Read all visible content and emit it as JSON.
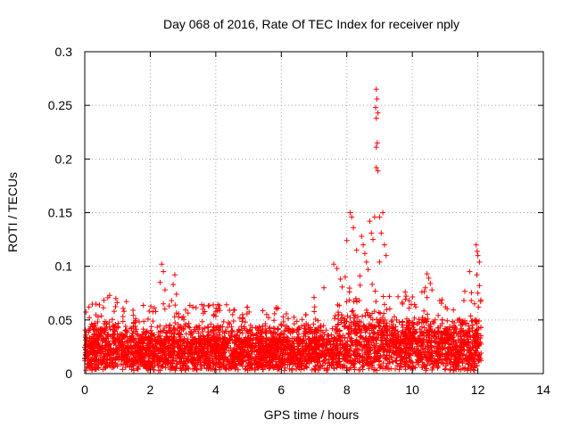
{
  "chart_data": {
    "type": "scatter",
    "title": "Day 068 of 2016, Rate Of TEC Index for receiver nply",
    "xlabel": "GPS time / hours",
    "ylabel": "ROTI / TECUs",
    "xlim": [
      0,
      14
    ],
    "ylim": [
      0,
      0.3
    ],
    "x_ticks": [
      0,
      2,
      4,
      6,
      8,
      10,
      12,
      14
    ],
    "y_ticks": [
      0,
      0.05,
      0.1,
      0.15,
      0.2,
      0.25,
      0.3
    ],
    "x_tick_labels": [
      "0",
      "2",
      "4",
      "6",
      "8",
      "10",
      "12",
      "14"
    ],
    "y_tick_labels": [
      "0",
      "0.05",
      "0.1",
      "0.15",
      "0.2",
      "0.25",
      "0.3"
    ],
    "grid": true,
    "marker": "+",
    "series": [
      {
        "name": "ROTI",
        "color": "#ff0000",
        "bulk_band": {
          "x_range": [
            0,
            12.1
          ],
          "y_min": 0.003,
          "base_level": 0.025,
          "envelope": "0.01-0.06"
        },
        "points": [
          [
            0.45,
            0.064
          ],
          [
            0.95,
            0.07
          ],
          [
            1.2,
            0.058
          ],
          [
            2.35,
            0.102
          ],
          [
            2.4,
            0.095
          ],
          [
            2.3,
            0.085
          ],
          [
            2.45,
            0.078
          ],
          [
            2.4,
            0.065
          ],
          [
            2.75,
            0.092
          ],
          [
            2.7,
            0.083
          ],
          [
            2.8,
            0.074
          ],
          [
            2.65,
            0.068
          ],
          [
            3.3,
            0.062
          ],
          [
            4.0,
            0.058
          ],
          [
            5.9,
            0.061
          ],
          [
            7.0,
            0.071
          ],
          [
            7.3,
            0.08
          ],
          [
            7.6,
            0.102
          ],
          [
            7.7,
            0.098
          ],
          [
            7.95,
            0.09
          ],
          [
            8.1,
            0.15
          ],
          [
            8.15,
            0.146
          ],
          [
            8.2,
            0.136
          ],
          [
            8.0,
            0.124
          ],
          [
            8.3,
            0.115
          ],
          [
            8.45,
            0.128
          ],
          [
            8.5,
            0.12
          ],
          [
            8.55,
            0.112
          ],
          [
            8.6,
            0.104
          ],
          [
            8.65,
            0.097
          ],
          [
            8.4,
            0.091
          ],
          [
            8.7,
            0.142
          ],
          [
            8.75,
            0.131
          ],
          [
            8.8,
            0.125
          ],
          [
            8.85,
            0.146
          ],
          [
            8.9,
            0.265
          ],
          [
            8.92,
            0.256
          ],
          [
            8.88,
            0.248
          ],
          [
            8.95,
            0.243
          ],
          [
            8.9,
            0.238
          ],
          [
            8.93,
            0.215
          ],
          [
            8.9,
            0.211
          ],
          [
            8.9,
            0.192
          ],
          [
            8.95,
            0.189
          ],
          [
            9.0,
            0.146
          ],
          [
            9.1,
            0.15
          ],
          [
            9.05,
            0.131
          ],
          [
            9.15,
            0.12
          ],
          [
            9.2,
            0.11
          ],
          [
            9.0,
            0.104
          ],
          [
            9.3,
            0.072
          ],
          [
            9.9,
            0.068
          ],
          [
            10.45,
            0.093
          ],
          [
            10.5,
            0.089
          ],
          [
            10.55,
            0.084
          ],
          [
            10.4,
            0.08
          ],
          [
            10.6,
            0.078
          ],
          [
            11.75,
            0.095
          ],
          [
            11.8,
            0.068
          ],
          [
            11.9,
            0.065
          ],
          [
            11.95,
            0.12
          ],
          [
            11.98,
            0.114
          ],
          [
            12.0,
            0.11
          ],
          [
            12.05,
            0.104
          ],
          [
            11.97,
            0.092
          ],
          [
            12.05,
            0.082
          ],
          [
            12.0,
            0.075
          ],
          [
            12.02,
            0.062
          ]
        ]
      }
    ]
  }
}
